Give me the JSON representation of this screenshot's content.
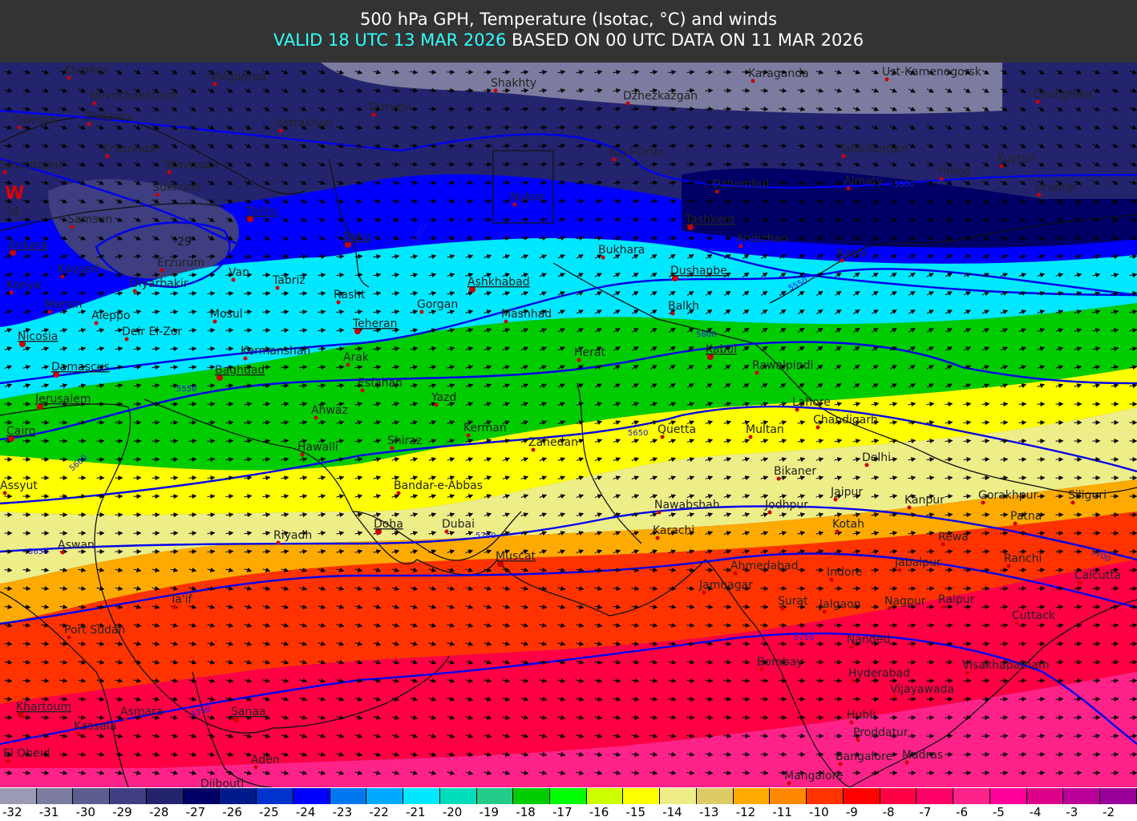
{
  "header": {
    "title": "500 hPa GPH, Temperature (Isotac, °C) and winds",
    "valid": "VALID 18 UTC 13 MAR 2026",
    "based": " BASED ON 00 UTC DATA ON 11 MAR 2026",
    "valid_color": "#33ffff"
  },
  "map": {
    "region": "Middle East and South Asia",
    "low_marker": "W",
    "low_value": "24",
    "cold_core_value": "-29",
    "contour_labels": [
      "5500",
      "5550",
      "5600",
      "5650",
      "5700",
      "5750"
    ],
    "cities": [
      {
        "name": "Kharkov",
        "capital": false
      },
      {
        "name": "Volgograd",
        "capital": false
      },
      {
        "name": "Shakhty",
        "capital": false
      },
      {
        "name": "Karaganda",
        "capital": false
      },
      {
        "name": "Ust-Kamenogorsk",
        "capital": false
      },
      {
        "name": "Novoshakhtinsk",
        "capital": false
      },
      {
        "name": "Guryev",
        "capital": false
      },
      {
        "name": "Dzhezkazgan",
        "capital": false
      },
      {
        "name": "Changhwa",
        "capital": false
      },
      {
        "name": "Odessa",
        "capital": false
      },
      {
        "name": "Zhdanov",
        "capital": false
      },
      {
        "name": "Astrakhan",
        "capital": false
      },
      {
        "name": "Krasnodar",
        "capital": false
      },
      {
        "name": "Kzyl-Orda",
        "capital": false
      },
      {
        "name": "Taldi-Kurgan",
        "capital": false
      },
      {
        "name": "Sevastopol",
        "capital": false
      },
      {
        "name": "Stavropol",
        "capital": false
      },
      {
        "name": "Yining",
        "capital": false
      },
      {
        "name": "Kuytun",
        "capital": false
      },
      {
        "name": "Sukhumi",
        "capital": false
      },
      {
        "name": "Nukus",
        "capital": false
      },
      {
        "name": "Dzhambul",
        "capital": false
      },
      {
        "name": "Almaty",
        "capital": false
      },
      {
        "name": "Urumqi",
        "capital": false
      },
      {
        "name": "Samsun",
        "capital": false
      },
      {
        "name": "Tbilisi",
        "capital": true
      },
      {
        "name": "Tashkent",
        "capital": true
      },
      {
        "name": "Ankara",
        "capital": true
      },
      {
        "name": "Baku",
        "capital": true
      },
      {
        "name": "Andizhan",
        "capital": false
      },
      {
        "name": "Erzurum",
        "capital": false
      },
      {
        "name": "Bukhara",
        "capital": false
      },
      {
        "name": "Kashi",
        "capital": false
      },
      {
        "name": "Kayseri",
        "capital": false
      },
      {
        "name": "Van",
        "capital": false
      },
      {
        "name": "Tabriz",
        "capital": false
      },
      {
        "name": "Dushanbe",
        "capital": true
      },
      {
        "name": "Konya",
        "capital": false
      },
      {
        "name": "Diyarbakir",
        "capital": false
      },
      {
        "name": "Ashkhabad",
        "capital": true
      },
      {
        "name": "Rasht",
        "capital": false
      },
      {
        "name": "Mersin",
        "capital": false
      },
      {
        "name": "Gorgan",
        "capital": false
      },
      {
        "name": "Balkh",
        "capital": false
      },
      {
        "name": "Aleppo",
        "capital": false
      },
      {
        "name": "Mosul",
        "capital": false
      },
      {
        "name": "Mashhad",
        "capital": false
      },
      {
        "name": "Nicosia",
        "capital": true
      },
      {
        "name": "Deir El-Zor",
        "capital": false
      },
      {
        "name": "Teheran",
        "capital": true
      },
      {
        "name": "Kermanshah",
        "capital": false
      },
      {
        "name": "Herat",
        "capital": false
      },
      {
        "name": "Kabul",
        "capital": true
      },
      {
        "name": "Arak",
        "capital": false
      },
      {
        "name": "Damascus",
        "capital": true
      },
      {
        "name": "Baghdad",
        "capital": true
      },
      {
        "name": "Rawalpindi",
        "capital": false
      },
      {
        "name": "Esfahan",
        "capital": false
      },
      {
        "name": "Jerusalem",
        "capital": true
      },
      {
        "name": "Yazd",
        "capital": false
      },
      {
        "name": "Lahore",
        "capital": false
      },
      {
        "name": "Ahwaz",
        "capital": false
      },
      {
        "name": "Chandigarh",
        "capital": false
      },
      {
        "name": "Cairo",
        "capital": true
      },
      {
        "name": "Kerman",
        "capital": false
      },
      {
        "name": "Quetta",
        "capital": false
      },
      {
        "name": "Multan",
        "capital": false
      },
      {
        "name": "Shiraz",
        "capital": false
      },
      {
        "name": "Hawalli",
        "capital": false
      },
      {
        "name": "Zahedan",
        "capital": false
      },
      {
        "name": "Delhi",
        "capital": false
      },
      {
        "name": "Bikaner",
        "capital": false
      },
      {
        "name": "Assyut",
        "capital": false
      },
      {
        "name": "Bandar-e-Abbas",
        "capital": false
      },
      {
        "name": "Jaipur",
        "capital": false
      },
      {
        "name": "Gorakhpur",
        "capital": false
      },
      {
        "name": "Siliguri",
        "capital": false
      },
      {
        "name": "Kanpur",
        "capital": false
      },
      {
        "name": "Nawabshah",
        "capital": false
      },
      {
        "name": "Jodhpur",
        "capital": false
      },
      {
        "name": "Patna",
        "capital": false
      },
      {
        "name": "Doha",
        "capital": true
      },
      {
        "name": "Dubai",
        "capital": false
      },
      {
        "name": "Kotah",
        "capital": false
      },
      {
        "name": "Riyadh",
        "capital": false
      },
      {
        "name": "Karachi",
        "capital": false
      },
      {
        "name": "Rewa",
        "capital": false
      },
      {
        "name": "Aswan",
        "capital": false
      },
      {
        "name": "Muscat",
        "capital": true
      },
      {
        "name": "Ranchi",
        "capital": false
      },
      {
        "name": "Ahmedabad",
        "capital": false
      },
      {
        "name": "Jabalpur",
        "capital": false
      },
      {
        "name": "Indore",
        "capital": false
      },
      {
        "name": "Calcutta",
        "capital": false
      },
      {
        "name": "Jamnagar",
        "capital": false
      },
      {
        "name": "Ta'if",
        "capital": false
      },
      {
        "name": "Surat",
        "capital": false
      },
      {
        "name": "Jalgaon",
        "capital": false
      },
      {
        "name": "Nagpur",
        "capital": false
      },
      {
        "name": "Raipur",
        "capital": false
      },
      {
        "name": "Cuttack",
        "capital": false
      },
      {
        "name": "Port Sudan",
        "capital": false
      },
      {
        "name": "Nanded",
        "capital": false
      },
      {
        "name": "Bombay",
        "capital": false
      },
      {
        "name": "Visakhapatnam",
        "capital": false
      },
      {
        "name": "Hyderabad",
        "capital": false
      },
      {
        "name": "Vijayawada",
        "capital": false
      },
      {
        "name": "Khartoum",
        "capital": true
      },
      {
        "name": "Asmara",
        "capital": false
      },
      {
        "name": "Sanaa",
        "capital": true
      },
      {
        "name": "Hubli",
        "capital": false
      },
      {
        "name": "Kassala",
        "capital": false
      },
      {
        "name": "Proddatur",
        "capital": false
      },
      {
        "name": "El Obeid",
        "capital": false
      },
      {
        "name": "Aden",
        "capital": false
      },
      {
        "name": "Bangalore",
        "capital": false
      },
      {
        "name": "Madras",
        "capital": false
      },
      {
        "name": "Djibouti",
        "capital": false
      },
      {
        "name": "Mangalore",
        "capital": false
      }
    ]
  },
  "legend": {
    "values": [
      "-32",
      "-31",
      "-30",
      "-29",
      "-28",
      "-27",
      "-26",
      "-25",
      "-24",
      "-23",
      "-22",
      "-21",
      "-20",
      "-19",
      "-18",
      "-17",
      "-16",
      "-15",
      "-14",
      "-13",
      "-12",
      "-11",
      "-10",
      "-9",
      "-8",
      "-7",
      "-6",
      "-5",
      "-4",
      "-3",
      "-2"
    ],
    "colors": [
      "#9a9ab4",
      "#7c7ca0",
      "#5c5c8e",
      "#3e3e80",
      "#24246e",
      "#000066",
      "#001a8c",
      "#0033cc",
      "#0000ff",
      "#0077ee",
      "#00aaff",
      "#00e8ff",
      "#00ddbb",
      "#22cc88",
      "#00cc00",
      "#00ff00",
      "#ccff00",
      "#ffff00",
      "#eeee88",
      "#ddcc66",
      "#ffaa00",
      "#ff8800",
      "#ff3300",
      "#ff0000",
      "#ff0044",
      "#ff0066",
      "#ff2288",
      "#ff0099",
      "#dd0088",
      "#bb0099",
      "#990099"
    ]
  }
}
